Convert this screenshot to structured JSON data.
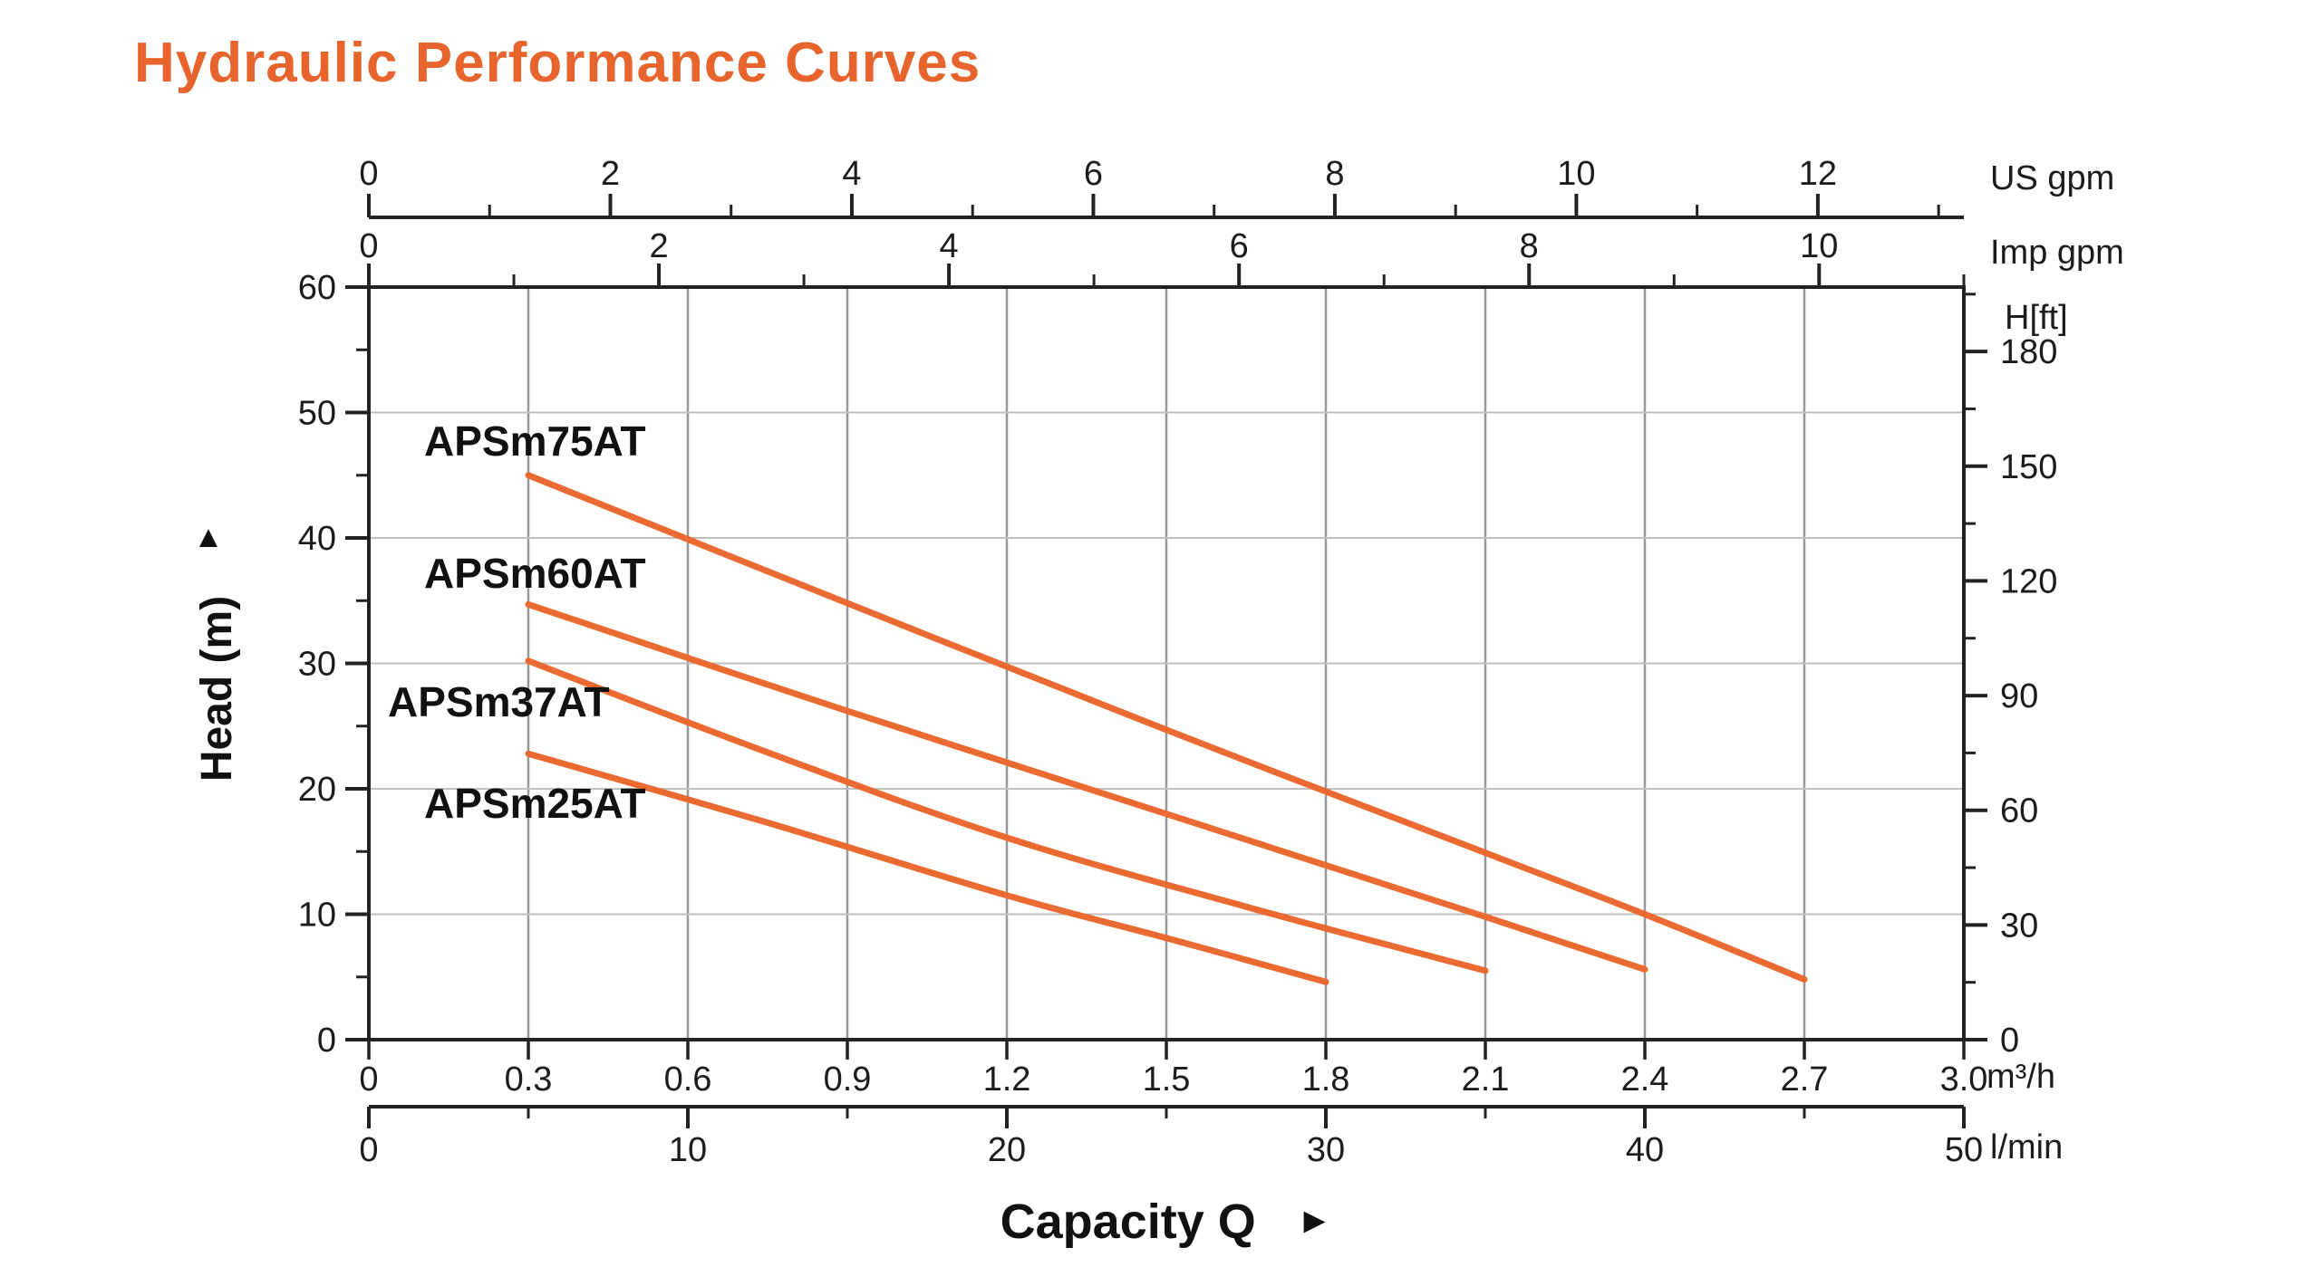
{
  "title": {
    "text": "Hydraulic Performance Curves"
  },
  "colors": {
    "title": "#e7642c",
    "curve": "#eb6a31",
    "axis": "#222222",
    "grid_vertical": "#989898",
    "grid_horizontal": "#bfbfbf",
    "text": "#1c1c1c"
  },
  "axis_titles": {
    "head": "Head (m)",
    "head_arrow": "▲",
    "capacity": "Capacity Q",
    "capacity_arrow": "►"
  },
  "units": {
    "usgpm": "US gpm",
    "impgpm": "Imp gpm",
    "hft": "H[ft]",
    "m3h": "m³/h",
    "lmin": "l/min"
  },
  "chart_data": {
    "type": "line",
    "title": "Hydraulic Performance Curves",
    "xlabel": "Capacity Q",
    "ylabel": "Head (m)",
    "grid": {
      "vertical": true,
      "horizontal": true
    },
    "x_axes": [
      {
        "id": "m3h",
        "unit": "m³/h",
        "min": 0,
        "max": 3.0,
        "position": "bottom-attached",
        "tick_values": [
          0,
          0.3,
          0.6,
          0.9,
          1.2,
          1.5,
          1.8,
          2.1,
          2.4,
          2.7,
          3.0
        ],
        "tick_labels": [
          "0",
          "0.3",
          "0.6",
          "0.9",
          "1.2",
          "1.5",
          "1.8",
          "2.1",
          "2.4",
          "2.7",
          "3.0"
        ]
      },
      {
        "id": "lmin",
        "unit": "l/min",
        "min": 0,
        "max": 50,
        "position": "bottom-ruler",
        "major_ticks": [
          0,
          10,
          20,
          30,
          40,
          50
        ],
        "major_labels": [
          "0",
          "10",
          "20",
          "30",
          "40",
          "50"
        ],
        "minor_ticks": [
          5,
          15,
          25,
          35,
          45
        ]
      },
      {
        "id": "usgpm",
        "unit": "US gpm",
        "min": 0,
        "max": 13.209,
        "position": "top-ruler",
        "major_ticks": [
          0,
          2,
          4,
          6,
          8,
          10,
          12
        ],
        "major_labels": [
          "0",
          "2",
          "4",
          "6",
          "8",
          "10",
          "12"
        ],
        "minor_ticks": [
          1,
          3,
          5,
          7,
          9,
          11,
          13
        ]
      },
      {
        "id": "impgpm",
        "unit": "Imp gpm",
        "min": 0,
        "max": 10.998,
        "position": "top-attached",
        "major_ticks": [
          0,
          2,
          4,
          6,
          8,
          10
        ],
        "major_labels": [
          "0",
          "2",
          "4",
          "6",
          "8",
          "10"
        ],
        "minor_ticks": [
          1,
          3,
          5,
          7,
          9,
          11
        ]
      }
    ],
    "y_axes": [
      {
        "id": "head_m",
        "unit": "m",
        "min": 0,
        "max": 60,
        "position": "left",
        "major_ticks": [
          0,
          10,
          20,
          30,
          40,
          50,
          60
        ],
        "major_labels": [
          "0",
          "10",
          "20",
          "30",
          "40",
          "50",
          "60"
        ],
        "minor_ticks": [
          5,
          15,
          25,
          35,
          45,
          55
        ]
      },
      {
        "id": "head_ft",
        "unit": "H[ft]",
        "min": 0,
        "max": 196.8,
        "position": "right",
        "m_per_unit": 0.3048,
        "major_ticks": [
          0,
          30,
          60,
          90,
          120,
          150,
          180
        ],
        "major_labels": [
          "0",
          "30",
          "60",
          "90",
          "120",
          "150",
          "180"
        ],
        "minor_ticks": [
          15,
          45,
          75,
          105,
          135,
          165,
          195
        ]
      }
    ],
    "series": [
      {
        "name": "APSm75AT",
        "points": [
          [
            0.3,
            45.0
          ],
          [
            0.9,
            34.8
          ],
          [
            1.5,
            24.7
          ],
          [
            2.1,
            14.9
          ],
          [
            2.4,
            10.0
          ],
          [
            2.7,
            4.8
          ]
        ]
      },
      {
        "name": "APSm60AT",
        "points": [
          [
            0.3,
            34.7
          ],
          [
            0.9,
            26.2
          ],
          [
            1.5,
            18.0
          ],
          [
            2.1,
            9.8
          ],
          [
            2.4,
            5.6
          ]
        ]
      },
      {
        "name": "APSm37AT",
        "points": [
          [
            0.3,
            30.2
          ],
          [
            0.75,
            22.9
          ],
          [
            1.2,
            16.1
          ],
          [
            1.65,
            10.6
          ],
          [
            2.1,
            5.5
          ]
        ]
      },
      {
        "name": "APSm25AT",
        "points": [
          [
            0.3,
            22.8
          ],
          [
            0.75,
            17.3
          ],
          [
            1.2,
            11.5
          ],
          [
            1.5,
            8.1
          ],
          [
            1.8,
            4.6
          ]
        ]
      }
    ]
  }
}
